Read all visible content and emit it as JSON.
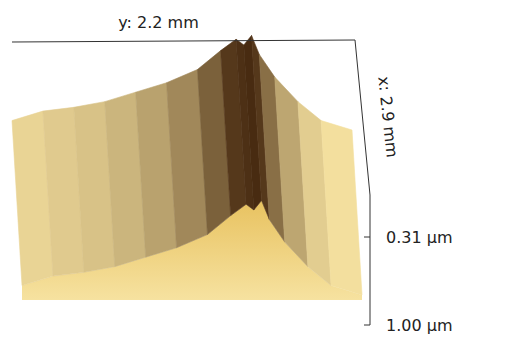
{
  "chart_data": {
    "type": "surface",
    "x_label": "y: 2.2 mm",
    "depth_label": "x: 2.9 mm",
    "y": [
      0,
      0.2,
      0.4,
      0.6,
      0.8,
      1.0,
      1.2,
      1.35,
      1.45,
      1.5,
      1.55,
      1.6,
      1.7,
      1.85,
      2.0,
      2.2
    ],
    "heights": [
      0.55,
      0.6,
      0.62,
      0.65,
      0.7,
      0.75,
      0.82,
      0.92,
      0.98,
      0.95,
      1.0,
      0.9,
      0.78,
      0.65,
      0.55,
      0.5
    ],
    "zlim": [
      0.31,
      1.0
    ],
    "zticks": [
      {
        "value": 0.31,
        "label": "0.31 µm"
      },
      {
        "value": 1.0,
        "label": "1.00 µm"
      }
    ],
    "color": "#e8c260"
  }
}
